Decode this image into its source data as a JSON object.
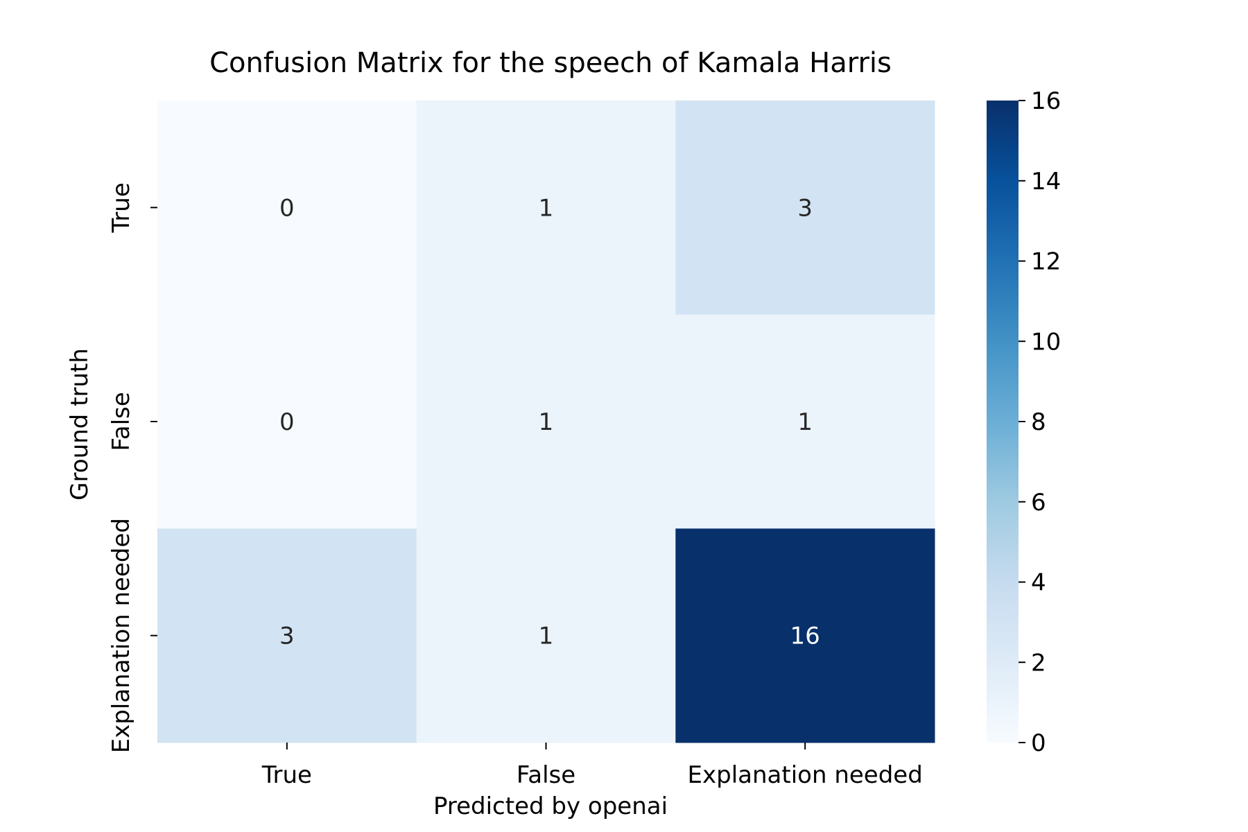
{
  "chart_data": {
    "type": "heatmap",
    "title": "Confusion Matrix for the speech of Kamala Harris",
    "xlabel": "Predicted by openai",
    "ylabel": "Ground truth",
    "x_categories": [
      "True",
      "False",
      "Explanation needed"
    ],
    "y_categories": [
      "True",
      "False",
      "Explanation needed"
    ],
    "values": [
      [
        0,
        1,
        3
      ],
      [
        0,
        1,
        1
      ],
      [
        3,
        1,
        16
      ]
    ],
    "colorbar": {
      "range": [
        0,
        16
      ],
      "ticks": [
        "0",
        "2",
        "4",
        "6",
        "8",
        "10",
        "12",
        "14",
        "16"
      ],
      "colormap": "Blues",
      "color_low": "#f7fbff",
      "color_high": "#08306b"
    },
    "annotation_colors": {
      "dark_text": "#262626",
      "light_text": "#ffffff"
    }
  }
}
